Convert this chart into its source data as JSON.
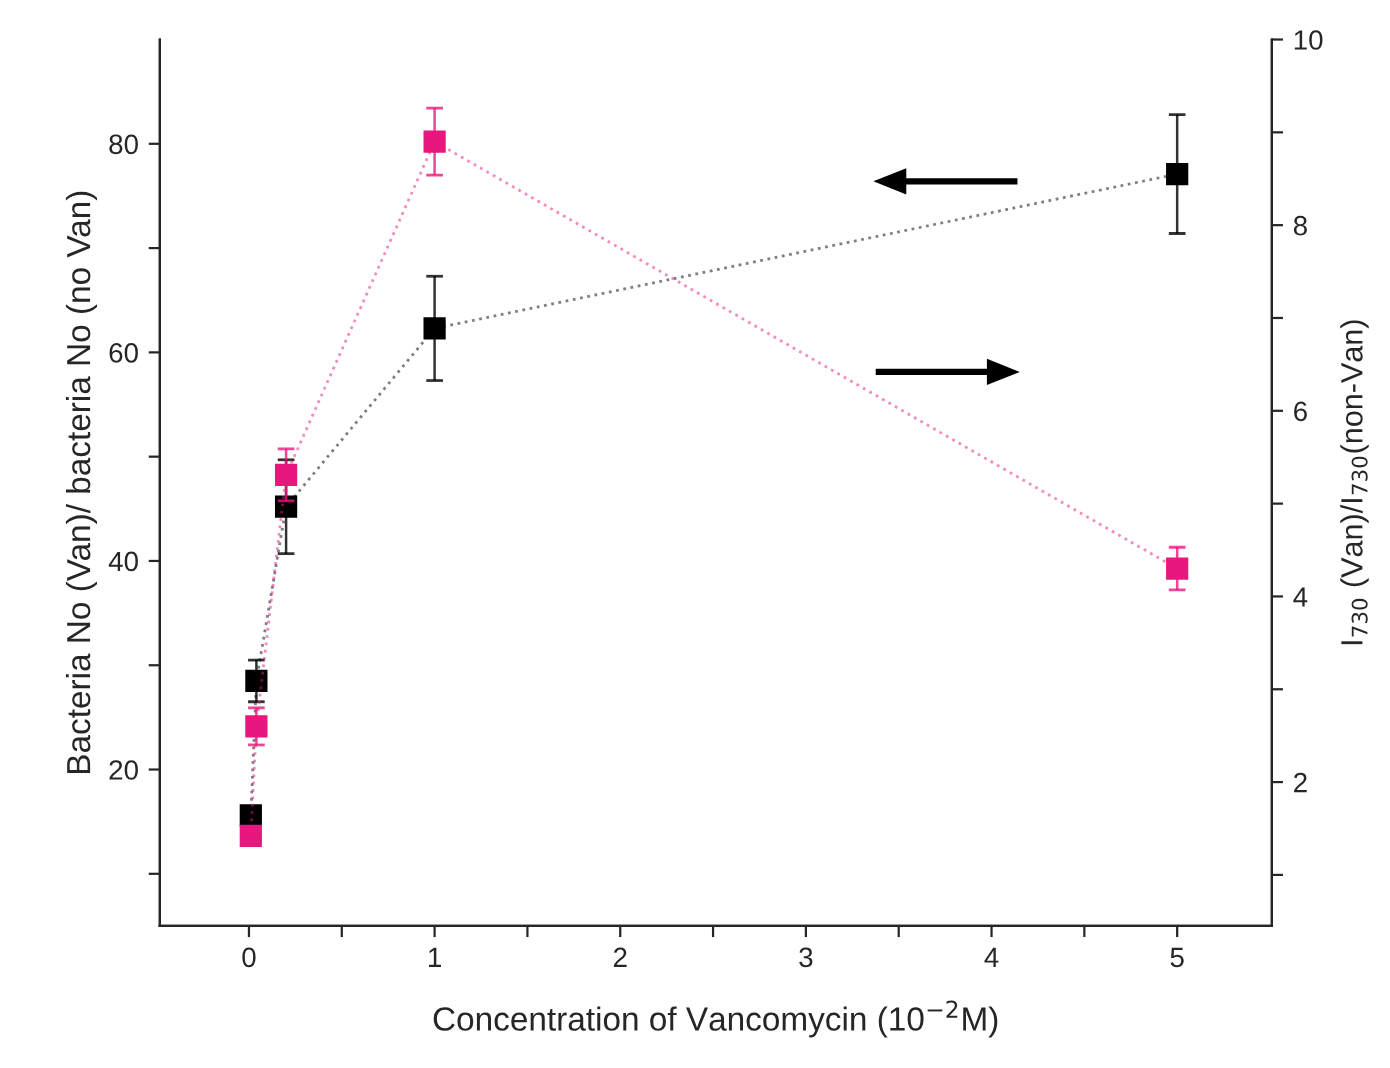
{
  "chart_data": {
    "type": "line",
    "xlabel": "Concentration of Vancomycin (10$^{−2}$M)",
    "ylabel": "Bacteria No (Van)/ bacteria No (no Van)",
    "y2label": "I$_{730}$ (Van)/I$_{730}$(non-Van)",
    "x": [
      0.01,
      0.04,
      0.2,
      1,
      5
    ],
    "series": [
      {
        "color": "#000000",
        "values": [
          15.6,
          28.5,
          45.2,
          62.3,
          77.1
        ],
        "errors": [
          null,
          2,
          4.5,
          5,
          5.7
        ]
      },
      {
        "axis": "y2",
        "color": "#e8177d",
        "values": [
          1.42,
          2.6,
          5.31,
          8.9,
          4.3
        ],
        "errors": [
          null,
          0.2,
          0.28,
          0.36,
          0.23
        ]
      }
    ],
    "marker": "square",
    "line_style": "dotted",
    "grid": false,
    "legend": false,
    "xlim": [
      -0.48,
      5.51
    ],
    "xticks": [
      0,
      {
        "value": 0.5,
        "label": null
      },
      1,
      {
        "value": 1.5,
        "label": null
      },
      2,
      {
        "value": 2.5,
        "label": null
      },
      3,
      {
        "value": 3.5,
        "label": null
      },
      4,
      {
        "value": 4.5,
        "label": null
      },
      5
    ],
    "ylim": [
      5,
      90
    ],
    "yticks": [
      {
        "value": 10,
        "label": null
      },
      20,
      {
        "value": 30,
        "label": null
      },
      40,
      {
        "value": 50,
        "label": null
      },
      60,
      {
        "value": 70,
        "label": null
      },
      80
    ],
    "y2lim": [
      0.45,
      10
    ],
    "y2ticks": [
      {
        "value": 1,
        "label": null
      },
      2,
      {
        "value": 3,
        "label": null
      },
      4,
      {
        "value": 5,
        "label": null
      },
      6,
      {
        "value": 7,
        "label": null
      },
      8,
      {
        "value": 9,
        "label": null
      },
      10
    ]
  }
}
